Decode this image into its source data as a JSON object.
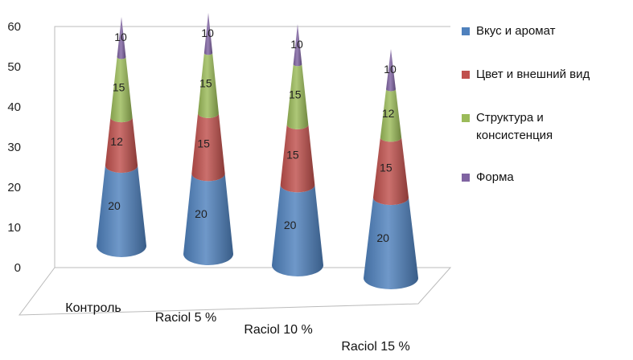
{
  "chart_data": {
    "type": "bar",
    "shape": "stacked-cone-3d",
    "categories": [
      "Контроль",
      "Raciol 5 %",
      "Raciol 10 %",
      "Raciol 15 %"
    ],
    "series": [
      {
        "name": "Вкус и аромат",
        "color": "#4F81BD",
        "values": [
          20,
          20,
          20,
          20
        ]
      },
      {
        "name": "Цвет и внешний вид",
        "color": "#C0504D",
        "values": [
          12,
          15,
          15,
          15
        ]
      },
      {
        "name": "Структура и консистенция",
        "color": "#9BBB59",
        "values": [
          15,
          15,
          15,
          12
        ]
      },
      {
        "name": "Форма",
        "color": "#8064A2",
        "values": [
          10,
          10,
          10,
          10
        ]
      }
    ],
    "y_ticks": [
      "0",
      "10",
      "20",
      "30",
      "40",
      "50",
      "60"
    ],
    "ylim": [
      0,
      60
    ],
    "legend": "right",
    "grid": false
  }
}
